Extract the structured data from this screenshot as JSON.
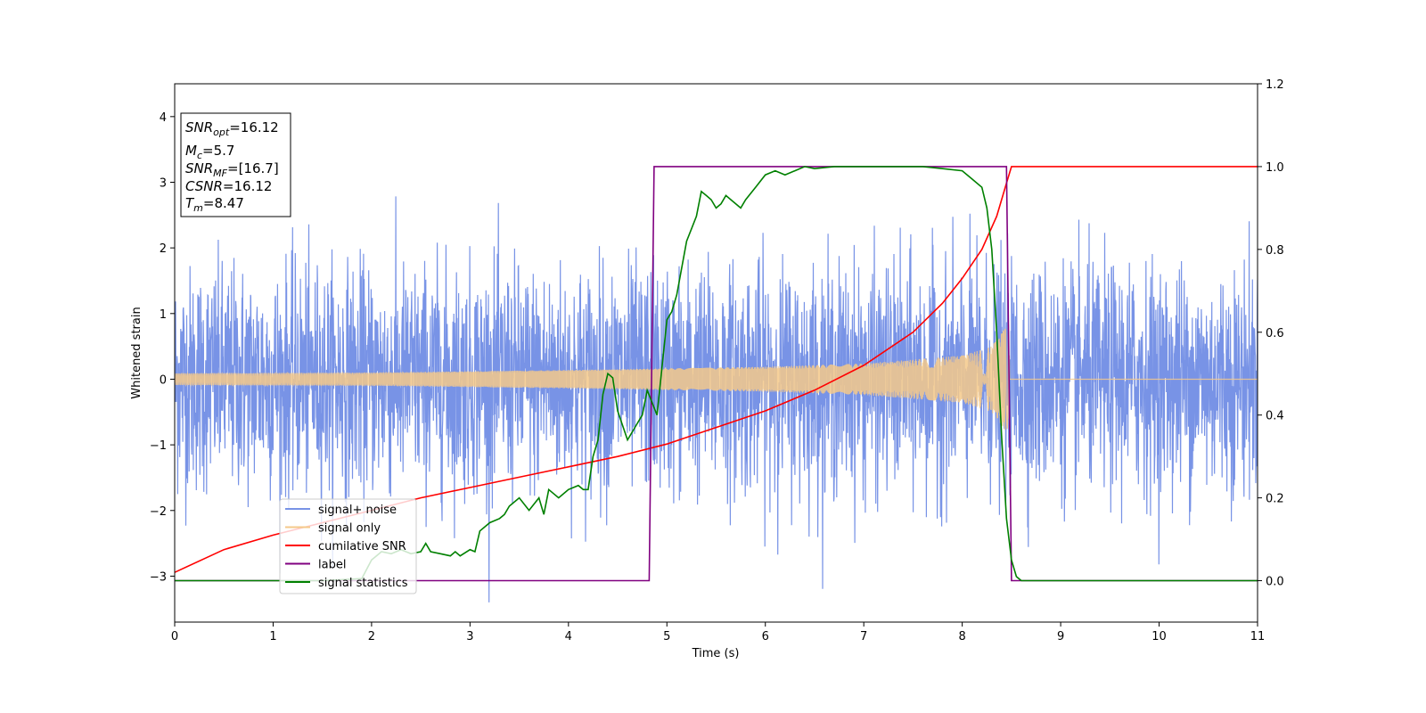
{
  "chart_data": {
    "type": "line",
    "xlabel": "Time (s)",
    "ylabel": "Whitened strain",
    "xlim": [
      0,
      11
    ],
    "ylim": [
      -3.7,
      4.5
    ],
    "y2lim": [
      -0.1,
      1.2
    ],
    "x_ticks": [
      "0",
      "1",
      "2",
      "3",
      "4",
      "5",
      "6",
      "7",
      "8",
      "9",
      "10",
      "11"
    ],
    "y_ticks": [
      "−3",
      "−2",
      "−1",
      "0",
      "1",
      "2",
      "3",
      "4"
    ],
    "y2_ticks": [
      "0.0",
      "0.2",
      "0.4",
      "0.6",
      "0.8",
      "1.0",
      "1.2"
    ],
    "legend_location": "lower-left",
    "annotation": {
      "snr_opt": {
        "var": "SNR",
        "sub": "opt",
        "value": "=16.12"
      },
      "mc": {
        "var": "M",
        "sub": "c",
        "value": "=5.7"
      },
      "snr_mf": {
        "var": "SNR",
        "sub": "MF",
        "value": "=[16.7]"
      },
      "csnr": {
        "var": "CSNR",
        "value": "=16.12"
      },
      "tm": {
        "var": "T",
        "sub": "m",
        "value": "=8.47"
      }
    },
    "series": [
      {
        "name": "signal+ noise",
        "axis": "left",
        "color": "#7893e6",
        "note_shape": "gaussian noise around 0",
        "noise_sigma": 0.85,
        "x_range": [
          0,
          11
        ]
      },
      {
        "name": "signal only",
        "axis": "left",
        "color": "#f5c98a",
        "chirp_envelope": {
          "x": [
            0,
            2,
            4,
            6,
            7,
            8,
            8.3,
            8.47,
            8.5,
            11
          ],
          "amp": [
            0.09,
            0.1,
            0.14,
            0.19,
            0.24,
            0.36,
            0.5,
            0.85,
            0.0,
            0.0
          ]
        }
      },
      {
        "name": "cumilative SNR",
        "axis": "right",
        "color": "#ff0000",
        "x": [
          0,
          0.5,
          1,
          1.5,
          2,
          2.5,
          3,
          3.5,
          4,
          4.5,
          5,
          5.5,
          6,
          6.5,
          7,
          7.5,
          7.8,
          8.0,
          8.2,
          8.35,
          8.45,
          8.5,
          11
        ],
        "y": [
          0.02,
          0.075,
          0.11,
          0.14,
          0.17,
          0.2,
          0.225,
          0.25,
          0.275,
          0.3,
          0.33,
          0.37,
          0.41,
          0.46,
          0.52,
          0.6,
          0.67,
          0.73,
          0.8,
          0.88,
          0.96,
          1.0,
          1.0
        ]
      },
      {
        "name": "label",
        "axis": "right",
        "color": "#800080",
        "x": [
          0,
          4.82,
          4.87,
          8.45,
          8.5,
          11
        ],
        "y": [
          0,
          0,
          1,
          1,
          0,
          0
        ]
      },
      {
        "name": "signal statistics",
        "axis": "right",
        "color": "#008000",
        "x": [
          0,
          1.5,
          1.9,
          2.0,
          2.05,
          2.1,
          2.2,
          2.3,
          2.4,
          2.5,
          2.55,
          2.6,
          2.7,
          2.8,
          2.85,
          2.9,
          3.0,
          3.05,
          3.1,
          3.2,
          3.3,
          3.35,
          3.4,
          3.5,
          3.6,
          3.7,
          3.75,
          3.8,
          3.9,
          4.0,
          4.1,
          4.15,
          4.2,
          4.25,
          4.3,
          4.35,
          4.4,
          4.45,
          4.5,
          4.6,
          4.7,
          4.75,
          4.8,
          4.9,
          5.0,
          5.05,
          5.1,
          5.2,
          5.3,
          5.35,
          5.4,
          5.45,
          5.5,
          5.55,
          5.6,
          5.65,
          5.7,
          5.75,
          5.8,
          5.9,
          6.0,
          6.1,
          6.2,
          6.3,
          6.4,
          6.5,
          6.7,
          7.0,
          7.3,
          7.6,
          7.8,
          8.0,
          8.1,
          8.2,
          8.25,
          8.3,
          8.35,
          8.4,
          8.45,
          8.5,
          8.55,
          8.6,
          8.7,
          11
        ],
        "y": [
          0.0,
          0.0,
          0.005,
          0.05,
          0.06,
          0.07,
          0.065,
          0.075,
          0.065,
          0.07,
          0.09,
          0.07,
          0.065,
          0.06,
          0.07,
          0.06,
          0.075,
          0.07,
          0.12,
          0.14,
          0.15,
          0.16,
          0.18,
          0.2,
          0.17,
          0.2,
          0.16,
          0.22,
          0.2,
          0.22,
          0.23,
          0.22,
          0.22,
          0.3,
          0.34,
          0.45,
          0.5,
          0.49,
          0.41,
          0.34,
          0.38,
          0.4,
          0.46,
          0.4,
          0.63,
          0.65,
          0.69,
          0.82,
          0.88,
          0.94,
          0.93,
          0.92,
          0.9,
          0.91,
          0.93,
          0.92,
          0.91,
          0.9,
          0.92,
          0.95,
          0.98,
          0.99,
          0.98,
          0.99,
          1.0,
          0.995,
          1.0,
          1.0,
          1.0,
          1.0,
          0.995,
          0.99,
          0.97,
          0.95,
          0.9,
          0.8,
          0.6,
          0.35,
          0.15,
          0.05,
          0.01,
          0.0,
          0.0,
          0.0
        ]
      }
    ]
  }
}
